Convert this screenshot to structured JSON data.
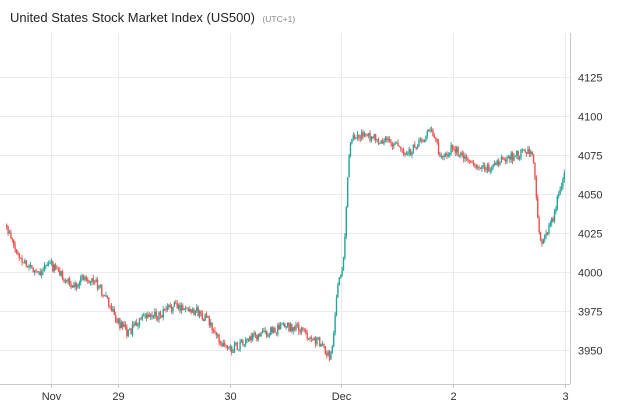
{
  "header": {
    "title": "United States Stock Market Index (US500)",
    "timezone": "(UTC+1)"
  },
  "colors": {
    "up": "#26a69a",
    "down": "#ef5350",
    "grid": "#ebebeb",
    "axis": "#c8c8c8",
    "text": "#333333"
  },
  "chart_data": {
    "type": "candlestick",
    "title": "United States Stock Market Index (US500)",
    "xlabel": "",
    "ylabel": "",
    "ylim": [
      3928,
      4153
    ],
    "yticks": [
      3950,
      3975,
      4000,
      4025,
      4050,
      4075,
      4100,
      4125
    ],
    "xticks": [
      {
        "label": "Nov",
        "x": 0.4
      },
      {
        "label": "29",
        "x": 1.0
      },
      {
        "label": "30",
        "x": 2.0
      },
      {
        "label": "Dec",
        "x": 3.0
      },
      {
        "label": "2",
        "x": 4.0
      },
      {
        "label": "3",
        "x": 5.0
      }
    ],
    "grid": true,
    "y_axis_position": "right",
    "series": [
      {
        "x": [
          0.0,
          0.1,
          0.2,
          0.3,
          0.4,
          0.5,
          0.6,
          0.7,
          0.8,
          0.9,
          1.0,
          1.1,
          1.2,
          1.3,
          1.4,
          1.5,
          1.6,
          1.7,
          1.8,
          1.9,
          2.0,
          2.1,
          2.2,
          2.3,
          2.4,
          2.5,
          2.6,
          2.7,
          2.8,
          2.9,
          3.0,
          3.1,
          3.2,
          3.3,
          3.4,
          3.5,
          3.6,
          3.7,
          3.8,
          3.9,
          4.0,
          4.1,
          4.2,
          4.3,
          4.4,
          4.5,
          4.6,
          4.7,
          4.8,
          4.9,
          5.0
        ],
        "y": [
          4030,
          4012,
          4004,
          4000,
          4005,
          3998,
          3990,
          3997,
          3994,
          3983,
          3968,
          3960,
          3969,
          3971,
          3973,
          3978,
          3977,
          3975,
          3970,
          3957,
          3950,
          3953,
          3957,
          3960,
          3962,
          3965,
          3964,
          3960,
          3955,
          3946,
          3998,
          4085,
          4088,
          4085,
          4084,
          4080,
          4076,
          4082,
          4092,
          4073,
          4080,
          4073,
          4067,
          4065,
          4070,
          4073,
          4075,
          4077,
          4018,
          4035,
          4065
        ]
      }
    ]
  }
}
